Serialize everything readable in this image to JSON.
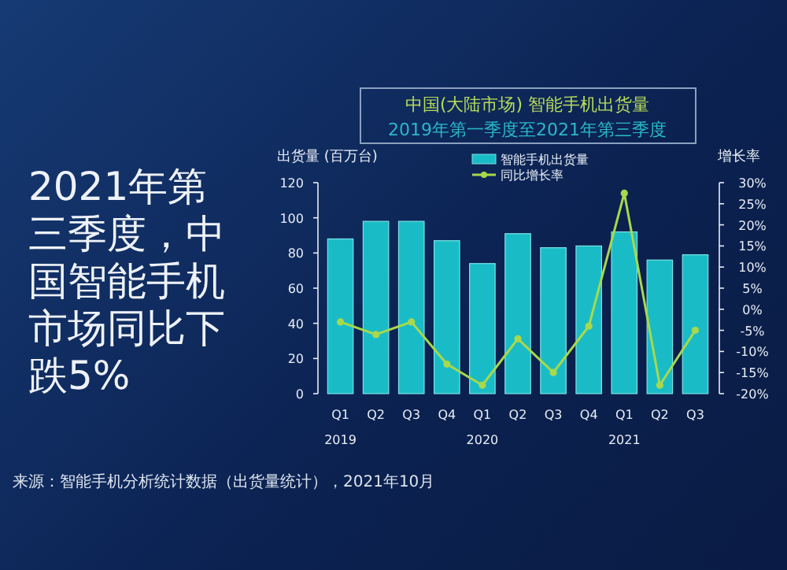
{
  "chart_data": {
    "type": "bar",
    "title": "中国(大陆市场) 智能手机出货量",
    "subtitle": "2019年第一季度至2021年第三季度",
    "ylabel": "出货量 (百万台)",
    "y2label": "增长率",
    "categories": [
      "Q1",
      "Q2",
      "Q3",
      "Q4",
      "Q1",
      "Q2",
      "Q3",
      "Q4",
      "Q1",
      "Q2",
      "Q3"
    ],
    "series": [
      {
        "name": "智能手机出货量",
        "color": "#19bcc6",
        "values": [
          88,
          98,
          98,
          87,
          74,
          91,
          83,
          84,
          92,
          76,
          79
        ]
      },
      {
        "name": "同比增长率",
        "type": "line",
        "axis": "y2",
        "color": "#a8d84c",
        "marker": "circle",
        "values": [
          -3,
          -6,
          -3,
          -13,
          -18,
          -7,
          -15,
          -4,
          27.5,
          -18,
          -5
        ]
      }
    ],
    "ylim": [
      0,
      120
    ],
    "yticks": [
      0,
      20,
      40,
      60,
      80,
      100,
      120
    ],
    "y2lim": [
      -20,
      30
    ],
    "y2ticks": [
      {
        "value": -20,
        "label": "-20%"
      },
      {
        "value": -15,
        "label": "-15%"
      },
      {
        "value": -10,
        "label": "-10%"
      },
      {
        "value": -5,
        "label": "-5%"
      },
      {
        "value": 0,
        "label": "0%"
      },
      {
        "value": 5,
        "label": "5%"
      },
      {
        "value": 10,
        "label": "10%"
      },
      {
        "value": 15,
        "label": "15%"
      },
      {
        "value": 20,
        "label": "20%"
      },
      {
        "value": 25,
        "label": "25%"
      },
      {
        "value": 30,
        "label": "30%"
      }
    ],
    "legend": "top",
    "annotations": [
      "2019",
      "2020",
      "2021",
      "2021年第三季度，中国智能手机市场同比下跌5%",
      "来源：智能手机分析统计数据（出货量统计），2021年10月"
    ]
  }
}
